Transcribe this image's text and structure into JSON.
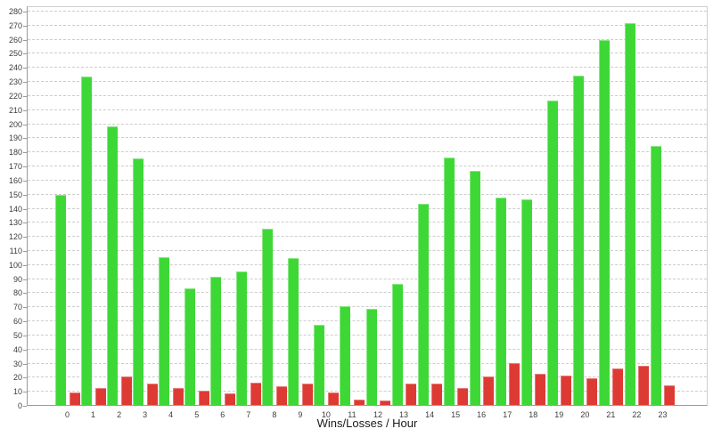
{
  "chart_data": {
    "type": "bar",
    "title": "",
    "xlabel": "Wins/Losses / Hour",
    "ylabel": "",
    "categories": [
      "0",
      "1",
      "2",
      "3",
      "4",
      "5",
      "6",
      "7",
      "8",
      "9",
      "10",
      "11",
      "12",
      "13",
      "14",
      "15",
      "16",
      "17",
      "18",
      "19",
      "20",
      "21",
      "22",
      "23"
    ],
    "series": [
      {
        "name": "Wins",
        "color": "#3ed836",
        "values": [
          149,
          233,
          198,
          175,
          105,
          83,
          91,
          95,
          125,
          104,
          57,
          70,
          68,
          86,
          143,
          176,
          166,
          147,
          146,
          216,
          234,
          259,
          271,
          184
        ]
      },
      {
        "name": "Losses",
        "color": "#de3a34",
        "values": [
          9,
          12,
          20,
          15,
          12,
          10,
          8,
          16,
          13,
          15,
          9,
          4,
          3,
          15,
          15,
          12,
          20,
          30,
          22,
          21,
          19,
          26,
          28,
          14
        ]
      }
    ],
    "ylim": [
      0,
      280
    ],
    "ytick_step": 10,
    "yticks": [
      0,
      10,
      20,
      30,
      40,
      50,
      60,
      70,
      80,
      90,
      100,
      110,
      120,
      130,
      140,
      150,
      160,
      170,
      180,
      190,
      200,
      210,
      220,
      230,
      240,
      250,
      260,
      270,
      280
    ],
    "grid": true,
    "legend": "none",
    "colors": {
      "grid": "#cccccc",
      "axis": "#9a9a9a",
      "tick_label": "#3c3c3c",
      "title": "#1a1a1a"
    }
  }
}
